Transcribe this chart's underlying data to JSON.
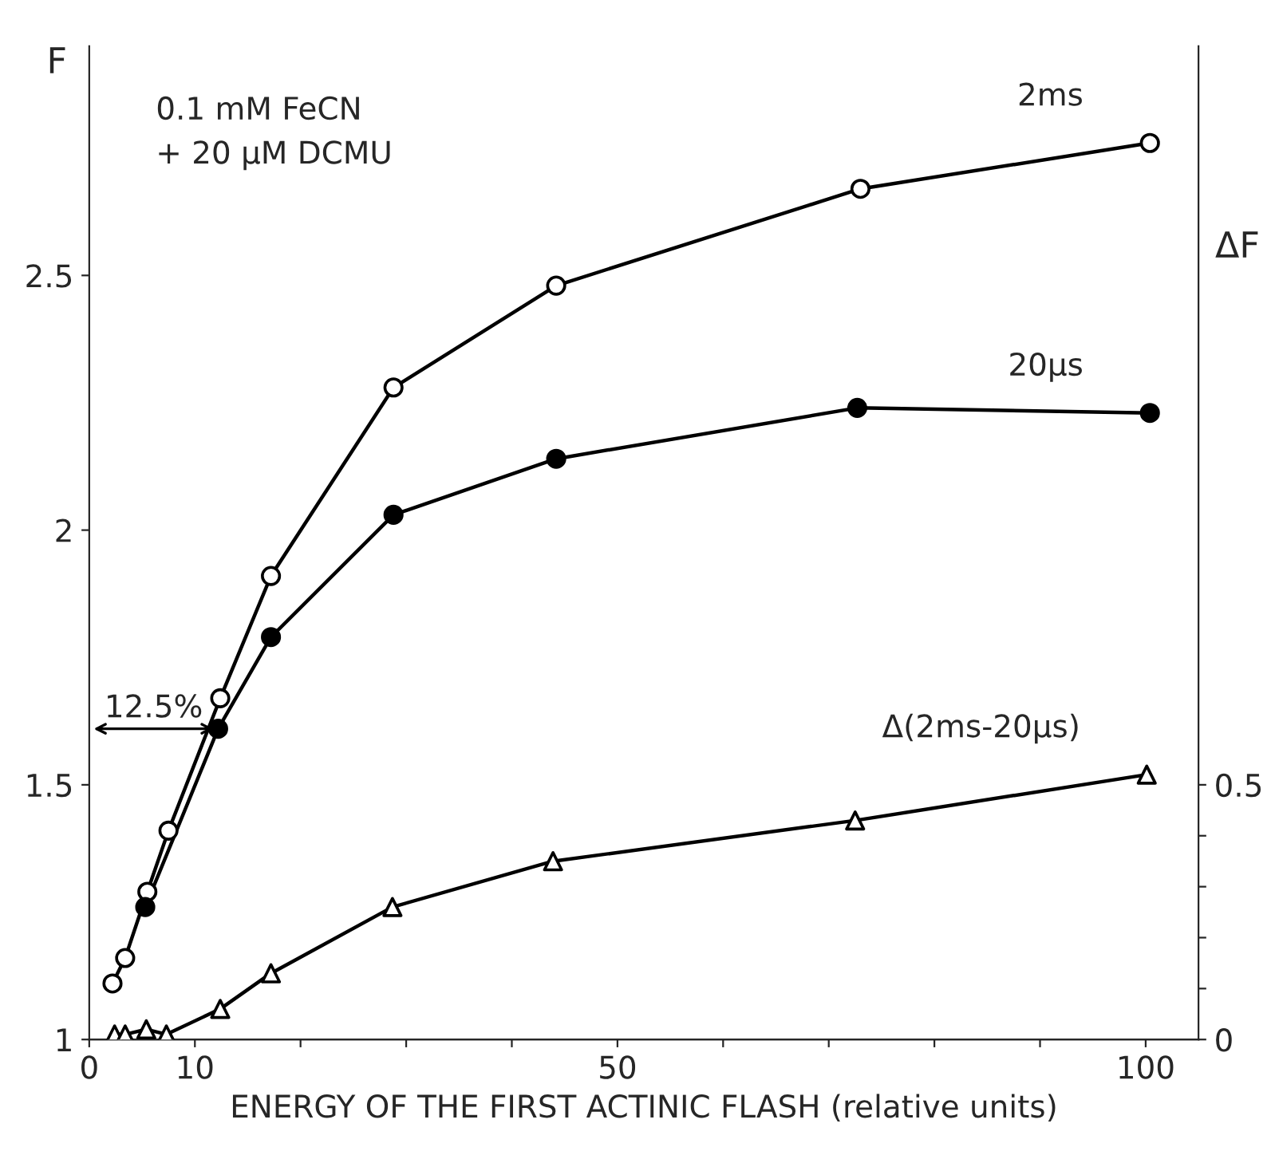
{
  "chart_data": {
    "type": "line",
    "xlabel": "ENERGY OF THE FIRST ACTINIC FLASH (relative units)",
    "ylabel": "F",
    "y2label": "ΔF",
    "series": [
      {
        "name": "2ms",
        "color": "#000000",
        "marker": "circle",
        "colors": [
          "#ffffff",
          "#ffffff",
          "#ffffff",
          "#ffffff",
          "#ffffff",
          "#ffffff",
          "#ffffff",
          "#ffffff",
          "#ffffff",
          "#ffffff"
        ],
        "x": [
          2.2,
          3.4,
          5.5,
          7.5,
          12.4,
          17.2,
          28.8,
          44.2,
          73,
          100.4
        ],
        "values": [
          1.11,
          1.16,
          1.29,
          1.41,
          1.67,
          1.91,
          2.28,
          2.48,
          2.67,
          2.76
        ]
      },
      {
        "name": "20μs",
        "color": "#000000",
        "marker": "circle",
        "colors": [
          "#000000",
          "#000000",
          "#000000",
          "#000000",
          "#000000",
          "#000000",
          "#000000"
        ],
        "x": [
          5.3,
          12.2,
          17.2,
          28.8,
          44.2,
          72.7,
          100.4
        ],
        "values": [
          1.26,
          1.61,
          1.79,
          2.03,
          2.14,
          2.24,
          2.23
        ]
      },
      {
        "name": "Δ(2ms-20μs)",
        "color": "#000000",
        "marker": "triangle",
        "colors": [
          "#ffffff",
          "#ffffff",
          "#ffffff",
          "#ffffff",
          "#ffffff",
          "#ffffff",
          "#ffffff",
          "#ffffff",
          "#ffffff",
          "#ffffff"
        ],
        "axis": "y2",
        "x": [
          2.4,
          3.4,
          5.4,
          7.3,
          12.4,
          17.2,
          28.7,
          43.9,
          72.5,
          100.1
        ],
        "values": [
          0.01,
          0.01,
          0.02,
          0.01,
          0.06,
          0.13,
          0.26,
          0.35,
          0.43,
          0.52
        ]
      }
    ],
    "xlim": [
      0,
      105
    ],
    "xticks": [
      0,
      10,
      {
        "value": 20,
        "label": null
      },
      {
        "value": 30,
        "label": null
      },
      {
        "value": 40,
        "label": null
      },
      50,
      {
        "value": 60,
        "label": null
      },
      {
        "value": 70,
        "label": null
      },
      {
        "value": 80,
        "label": null
      },
      {
        "value": 90,
        "label": null
      },
      100
    ],
    "ylim": [
      1,
      2.95
    ],
    "yticks": [
      1,
      1.5,
      2,
      2.5
    ],
    "y2lim": [
      0,
      1.95
    ],
    "y2ticks": [
      0,
      {
        "value": 0.1,
        "label": null
      },
      {
        "value": 0.2,
        "label": null
      },
      {
        "value": 0.3,
        "label": null
      },
      {
        "value": 0.4,
        "label": null
      },
      0.5
    ],
    "annotations": [
      "0.1 mM FeCN\n+ 20 μM DCMU",
      {
        "text": "12.5%",
        "x": 12.2,
        "y": 1.61
      }
    ],
    "grid": false,
    "legend": false,
    "line_style": "solid"
  }
}
